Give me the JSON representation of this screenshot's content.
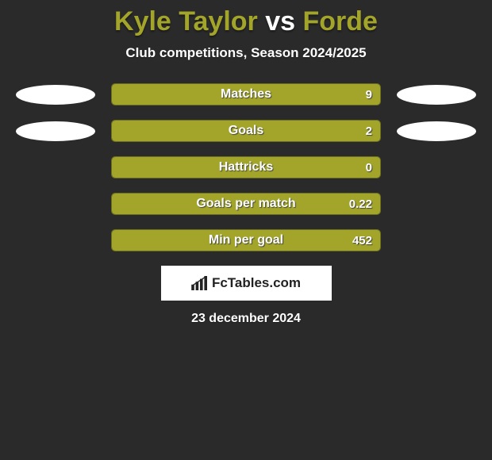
{
  "title_color": "#a2a52a",
  "player1": "Kyle Taylor",
  "player2": "Forde",
  "subtitle": "Club competitions, Season 2024/2025",
  "background_color": "#2a2a2a",
  "bar_fill_color": "#a2a52a",
  "bar_border_color": "#6b6e1e",
  "ellipse_color": "#ffffff",
  "stats": [
    {
      "label": "Matches",
      "value": "9",
      "fill_pct": 100,
      "show_ellipse": true
    },
    {
      "label": "Goals",
      "value": "2",
      "fill_pct": 100,
      "show_ellipse": true
    },
    {
      "label": "Hattricks",
      "value": "0",
      "fill_pct": 100,
      "show_ellipse": false
    },
    {
      "label": "Goals per match",
      "value": "0.22",
      "fill_pct": 100,
      "show_ellipse": false
    },
    {
      "label": "Min per goal",
      "value": "452",
      "fill_pct": 100,
      "show_ellipse": false
    }
  ],
  "brand": "FcTables.com",
  "date": "23 december 2024",
  "fonts": {
    "title_size": 34,
    "subtitle_size": 17,
    "bar_label_size": 16,
    "bar_value_size": 15,
    "brand_size": 17,
    "date_size": 16
  }
}
